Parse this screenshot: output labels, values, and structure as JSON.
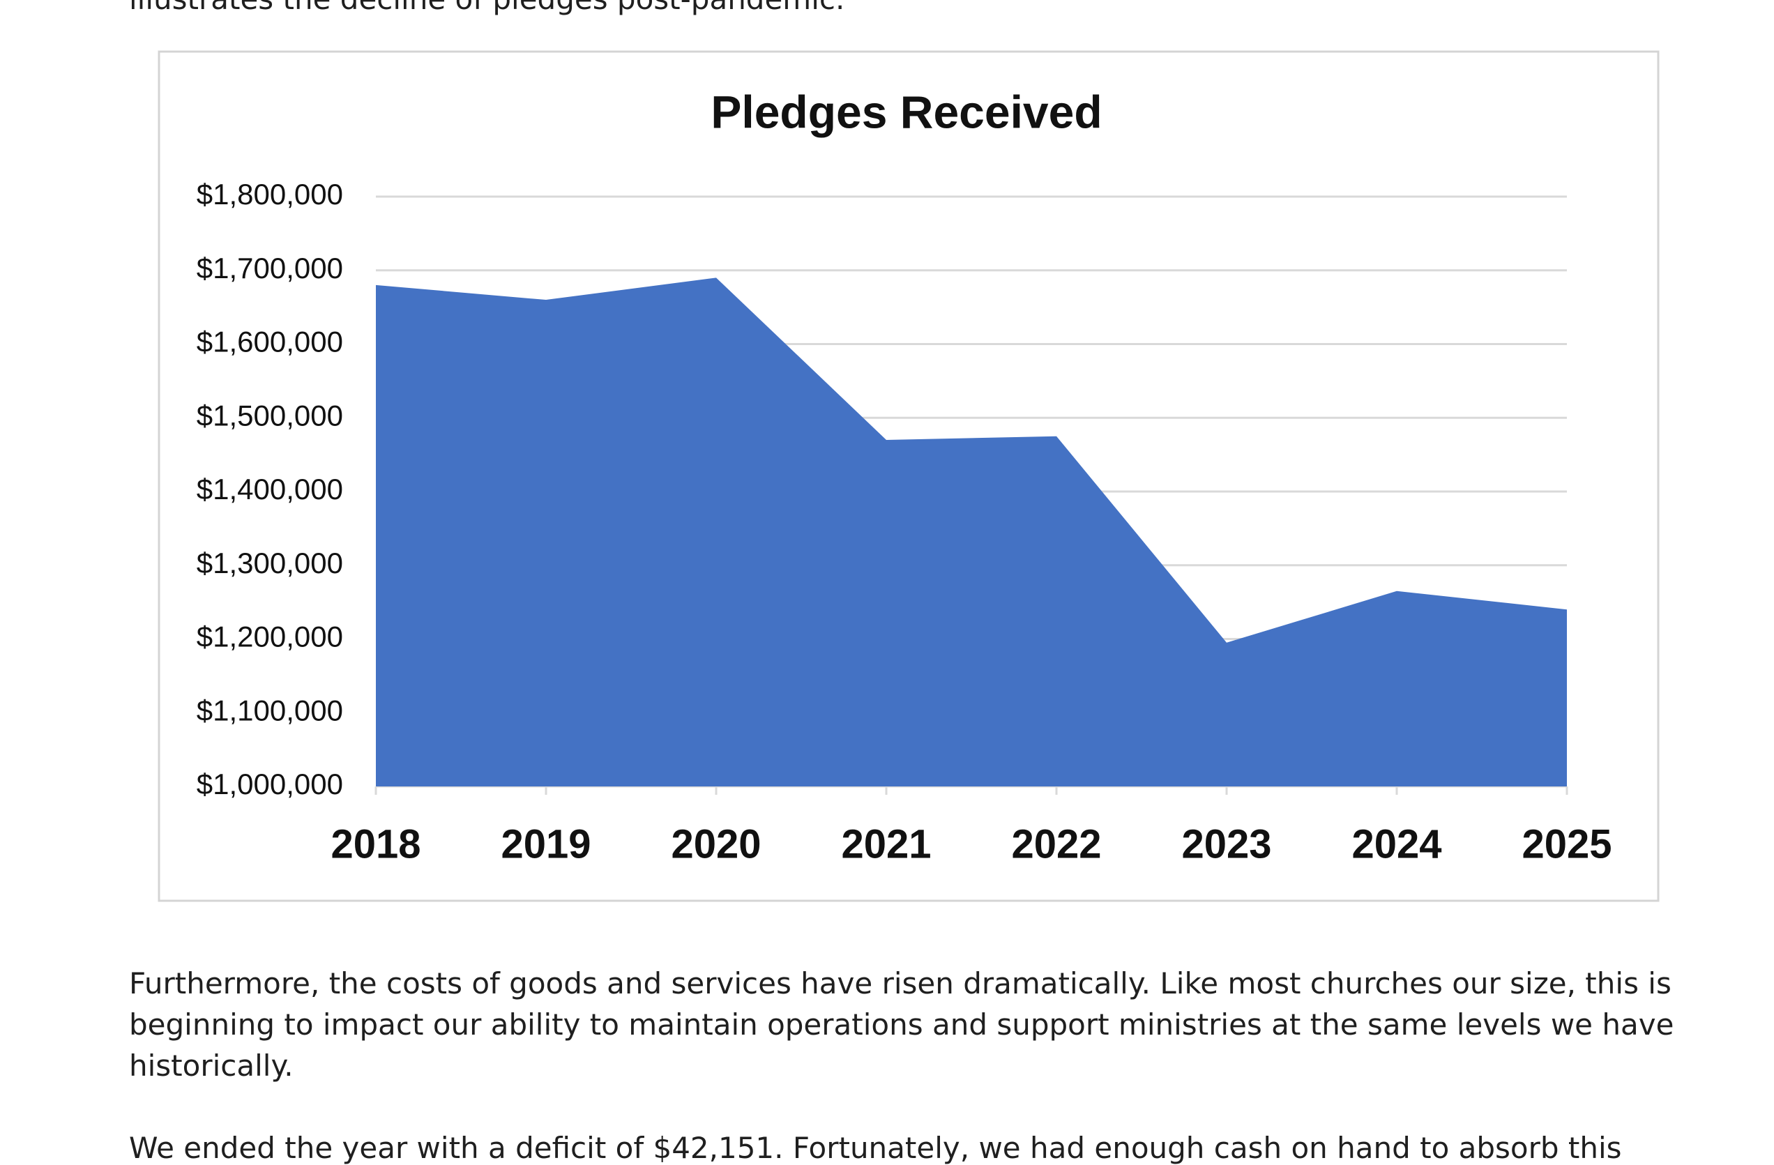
{
  "top_text": "illustrates the decline of pledges post-pandemic.",
  "chart_data": {
    "type": "area",
    "title": "Pledges Received",
    "categories": [
      "2018",
      "2019",
      "2020",
      "2021",
      "2022",
      "2023",
      "2024",
      "2025"
    ],
    "values": [
      1680000,
      1660000,
      1690000,
      1470000,
      1475000,
      1195000,
      1265000,
      1240000
    ],
    "color": "#4472c4",
    "ylim": [
      1000000,
      1800000
    ],
    "yticks": [
      {
        "value": 1000000,
        "label": "$1,000,000"
      },
      {
        "value": 1100000,
        "label": "$1,100,000"
      },
      {
        "value": 1200000,
        "label": "$1,200,000"
      },
      {
        "value": 1300000,
        "label": "$1,300,000"
      },
      {
        "value": 1400000,
        "label": "$1,400,000"
      },
      {
        "value": 1500000,
        "label": "$1,500,000"
      },
      {
        "value": 1600000,
        "label": "$1,600,000"
      },
      {
        "value": 1700000,
        "label": "$1,700,000"
      },
      {
        "value": 1800000,
        "label": "$1,800,000"
      }
    ],
    "grid": true
  },
  "paragraphs": [
    {
      "lines": [
        "Furthermore, the costs of goods and services have risen dramatically. Like most churches our size, this is",
        "beginning to impact our ability to maintain operations and support ministries at the same levels we have",
        "historically."
      ]
    },
    {
      "lines": [
        "We ended the year with a deficit of $42,151. Fortunately, we had enough cash on hand to absorb this"
      ]
    }
  ]
}
